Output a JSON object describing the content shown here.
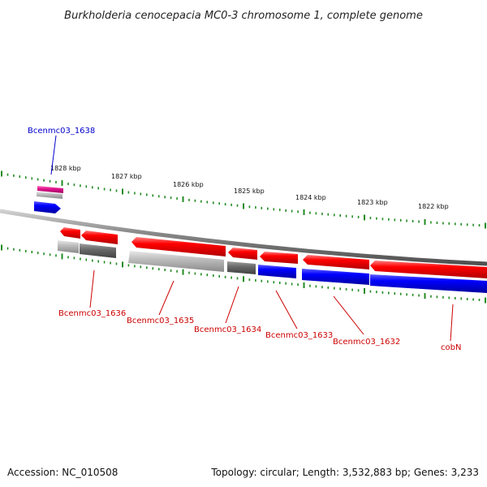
{
  "title": "Burkholderia cenocepacia MC0-3 chromosome 1, complete genome",
  "footer": {
    "accession": "Accession: NC_010508",
    "summary": "Topology: circular; Length: 3,532,883 bp; Genes: 3,233"
  },
  "colors": {
    "forward_cds": "#ff0000",
    "reverse_cds": "#0000ff",
    "rna": "#e0148c",
    "backbone": "#808080",
    "ticks": "#228b22",
    "label_forward": "#cc0000",
    "label_reverse": "#0000cc"
  },
  "tick_labels": [
    "1828 kbp",
    "1827 kbp",
    "1826 kbp",
    "1825 kbp",
    "1824 kbp",
    "1823 kbp",
    "1822 kbp"
  ],
  "gene_labels": [
    {
      "text": "Bcenmc03_1638",
      "color": "#0000cc"
    },
    {
      "text": "Bcenmc03_1636",
      "color": "#cc0000"
    },
    {
      "text": "Bcenmc03_1635",
      "color": "#cc0000"
    },
    {
      "text": "Bcenmc03_1634",
      "color": "#cc0000"
    },
    {
      "text": "Bcenmc03_1633",
      "color": "#cc0000"
    },
    {
      "text": "Bcenmc03_1632",
      "color": "#cc0000"
    },
    {
      "text": "cobN",
      "color": "#cc0000"
    }
  ]
}
